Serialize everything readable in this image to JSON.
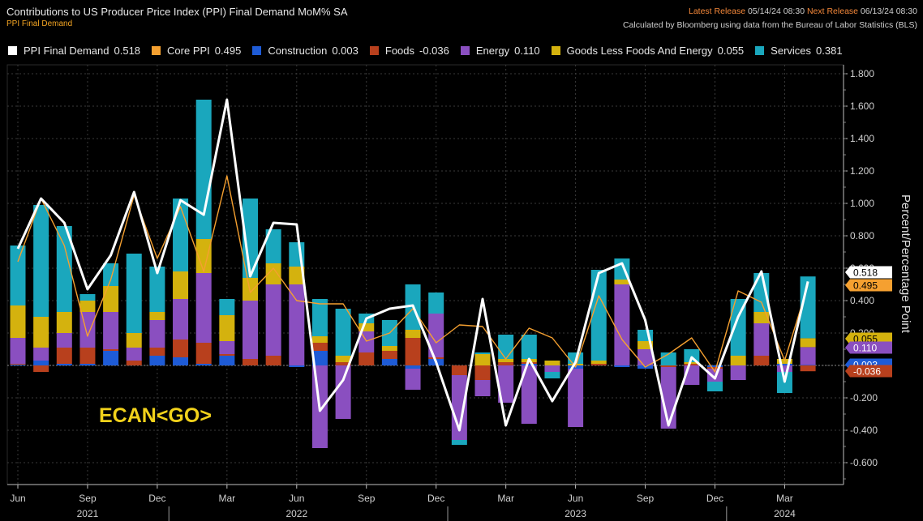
{
  "header": {
    "title": "Contributions to US Producer Price Index (PPI) Final Demand MoM% SA",
    "subtitle": "PPI Final Demand",
    "latest_label": "Latest Release",
    "latest_value": "05/14/24 08:30",
    "next_label": "Next Release",
    "next_value": "06/13/24 08:30",
    "source": "Calculated by Bloomberg using data from the Bureau of Labor Statistics (BLS)"
  },
  "watermark": "ECAN<GO>",
  "colors": {
    "ppi": "#ffffff",
    "core": "#f5a030",
    "construction": "#1e5bd6",
    "foods": "#b8401d",
    "energy": "#8a4fc0",
    "goods": "#d4b20e",
    "services": "#1aa7bd",
    "grid": "#3a3a3a",
    "axis": "#bfbfbf"
  },
  "legend": [
    {
      "key": "ppi",
      "label": "PPI Final Demand",
      "value": "0.518",
      "color": "#ffffff"
    },
    {
      "key": "core",
      "label": "Core PPI",
      "value": "0.495",
      "color": "#f5a030"
    },
    {
      "key": "construction",
      "label": "Construction",
      "value": "0.003",
      "color": "#1e5bd6"
    },
    {
      "key": "foods",
      "label": "Foods",
      "value": "-0.036",
      "color": "#b8401d"
    },
    {
      "key": "energy",
      "label": "Energy",
      "value": "0.110",
      "color": "#8a4fc0"
    },
    {
      "key": "goods",
      "label": "Goods Less Foods And Energy",
      "value": "0.055",
      "color": "#d4b20e"
    },
    {
      "key": "services",
      "label": "Services",
      "value": "0.381",
      "color": "#1aa7bd"
    }
  ],
  "chart_data": {
    "type": "bar",
    "ylabel": "Percent/Percentage Point",
    "ylim": [
      -0.7,
      1.85
    ],
    "yticks": [
      "1.800",
      "1.600",
      "1.400",
      "1.200",
      "1.000",
      "0.800",
      "0.600",
      "0.400",
      "0.200",
      "0.000",
      "-0.200",
      "-0.400",
      "-0.600"
    ],
    "ytick_values": [
      1.8,
      1.6,
      1.4,
      1.2,
      1.0,
      0.8,
      0.6,
      0.4,
      0.2,
      0,
      -0.2,
      -0.4,
      -0.6
    ],
    "x_months": [
      "Jun",
      "Sep",
      "Dec",
      "Mar",
      "Jun",
      "Sep",
      "Dec",
      "Mar",
      "Jun",
      "Sep",
      "Dec",
      "Mar"
    ],
    "x_month_index": [
      0,
      3,
      6,
      9,
      12,
      15,
      18,
      21,
      24,
      27,
      30,
      33
    ],
    "years": [
      {
        "label": "2021",
        "center": 3
      },
      {
        "label": "2022",
        "center": 12
      },
      {
        "label": "2023",
        "center": 24
      },
      {
        "label": "2024",
        "center": 33
      }
    ],
    "year_separators": [
      6.5,
      18.5,
      30.5
    ],
    "categories": [
      "2021-06",
      "2021-07",
      "2021-08",
      "2021-09",
      "2021-10",
      "2021-11",
      "2021-12",
      "2022-01",
      "2022-02",
      "2022-03",
      "2022-04",
      "2022-05",
      "2022-06",
      "2022-07",
      "2022-08",
      "2022-09",
      "2022-10",
      "2022-11",
      "2022-12",
      "2023-01",
      "2023-02",
      "2023-03",
      "2023-04",
      "2023-05",
      "2023-06",
      "2023-07",
      "2023-08",
      "2023-09",
      "2023-10",
      "2023-11",
      "2023-12",
      "2024-01",
      "2024-02",
      "2024-03",
      "2024-04"
    ],
    "stack_order": [
      "construction",
      "foods",
      "energy",
      "goods",
      "services"
    ],
    "series": [
      {
        "name": "Construction",
        "key": "construction",
        "values": [
          0.005,
          0.03,
          0.01,
          0.01,
          0.09,
          0.0,
          0.06,
          0.05,
          0.01,
          0.06,
          0.0,
          0.0,
          -0.01,
          0.09,
          0.0,
          0.0,
          0.04,
          -0.02,
          0.04,
          0.0,
          0.0,
          0.0,
          0.01,
          0.0,
          -0.02,
          0.0,
          -0.01,
          -0.02,
          0.0,
          0.0,
          -0.01,
          0.0,
          0.0,
          0.01,
          0.003
        ]
      },
      {
        "name": "Foods",
        "key": "foods",
        "values": [
          0.005,
          -0.04,
          0.1,
          0.1,
          0.01,
          0.03,
          0.05,
          0.11,
          0.13,
          0.01,
          0.04,
          0.06,
          0.0,
          0.05,
          0.02,
          0.08,
          0.05,
          0.17,
          0.01,
          -0.06,
          -0.09,
          0.02,
          0.01,
          0.0,
          0.0,
          0.01,
          0.0,
          0.0,
          -0.01,
          0.01,
          -0.01,
          0.0,
          0.06,
          0.0,
          -0.036
        ]
      },
      {
        "name": "Energy",
        "key": "energy",
        "values": [
          0.16,
          0.08,
          0.09,
          0.22,
          0.23,
          0.08,
          0.17,
          0.25,
          0.43,
          0.08,
          0.36,
          0.44,
          0.5,
          -0.51,
          -0.33,
          0.13,
          0.0,
          -0.13,
          0.27,
          -0.4,
          -0.1,
          -0.23,
          -0.36,
          -0.04,
          -0.36,
          0.0,
          0.5,
          0.1,
          -0.38,
          -0.12,
          -0.08,
          -0.09,
          0.2,
          -0.04,
          0.11
        ]
      },
      {
        "name": "Goods Less Foods And Energy",
        "key": "goods",
        "values": [
          0.2,
          0.19,
          0.13,
          0.07,
          0.16,
          0.09,
          0.05,
          0.17,
          0.21,
          0.16,
          0.14,
          0.13,
          0.11,
          0.04,
          0.04,
          0.05,
          0.03,
          0.05,
          0.0,
          0.0,
          0.07,
          0.02,
          0.02,
          0.03,
          0.01,
          0.02,
          0.03,
          0.05,
          0.0,
          0.01,
          0.0,
          0.06,
          0.07,
          0.03,
          0.055
        ]
      },
      {
        "name": "Services",
        "key": "services",
        "values": [
          0.37,
          0.69,
          0.53,
          0.04,
          0.14,
          0.49,
          0.28,
          0.45,
          0.86,
          0.1,
          0.49,
          0.21,
          0.15,
          0.23,
          0.29,
          0.06,
          0.16,
          0.28,
          0.13,
          -0.03,
          0.01,
          0.15,
          0.15,
          -0.04,
          0.07,
          0.56,
          0.13,
          0.07,
          0.08,
          0.08,
          -0.06,
          0.35,
          0.24,
          -0.13,
          0.381
        ]
      }
    ],
    "lines": [
      {
        "name": "PPI Final Demand",
        "key": "ppi",
        "values": [
          0.72,
          1.03,
          0.88,
          0.47,
          0.68,
          1.07,
          0.57,
          1.02,
          0.93,
          1.64,
          0.55,
          0.88,
          0.87,
          -0.28,
          -0.09,
          0.29,
          0.35,
          0.37,
          0.02,
          -0.4,
          0.41,
          -0.37,
          0.04,
          -0.22,
          0.02,
          0.57,
          0.63,
          0.28,
          -0.37,
          0.05,
          -0.08,
          0.3,
          0.58,
          -0.1,
          0.518
        ]
      },
      {
        "name": "Core PPI",
        "key": "core",
        "values": [
          0.64,
          1.03,
          0.74,
          0.18,
          0.53,
          1.05,
          0.66,
          0.98,
          0.58,
          1.17,
          0.45,
          0.6,
          0.4,
          0.38,
          0.38,
          0.15,
          0.2,
          0.35,
          0.14,
          0.25,
          0.24,
          0.04,
          0.23,
          0.17,
          -0.01,
          0.43,
          0.16,
          -0.01,
          0.07,
          0.17,
          -0.04,
          0.46,
          0.39,
          0.03,
          0.495
        ]
      }
    ],
    "last_value_tags": [
      {
        "key": "ppi",
        "label": "0.518",
        "value": 0.518
      },
      {
        "key": "core",
        "label": "0.495",
        "value": 0.495
      },
      {
        "key": "goods",
        "label": "0.055",
        "value": 0.055
      },
      {
        "key": "energy",
        "label": "0.110",
        "value": 0.11
      },
      {
        "key": "construction",
        "label": "0.003",
        "value": 0.003
      },
      {
        "key": "foods",
        "label": "-0.036",
        "value": -0.036
      }
    ]
  }
}
